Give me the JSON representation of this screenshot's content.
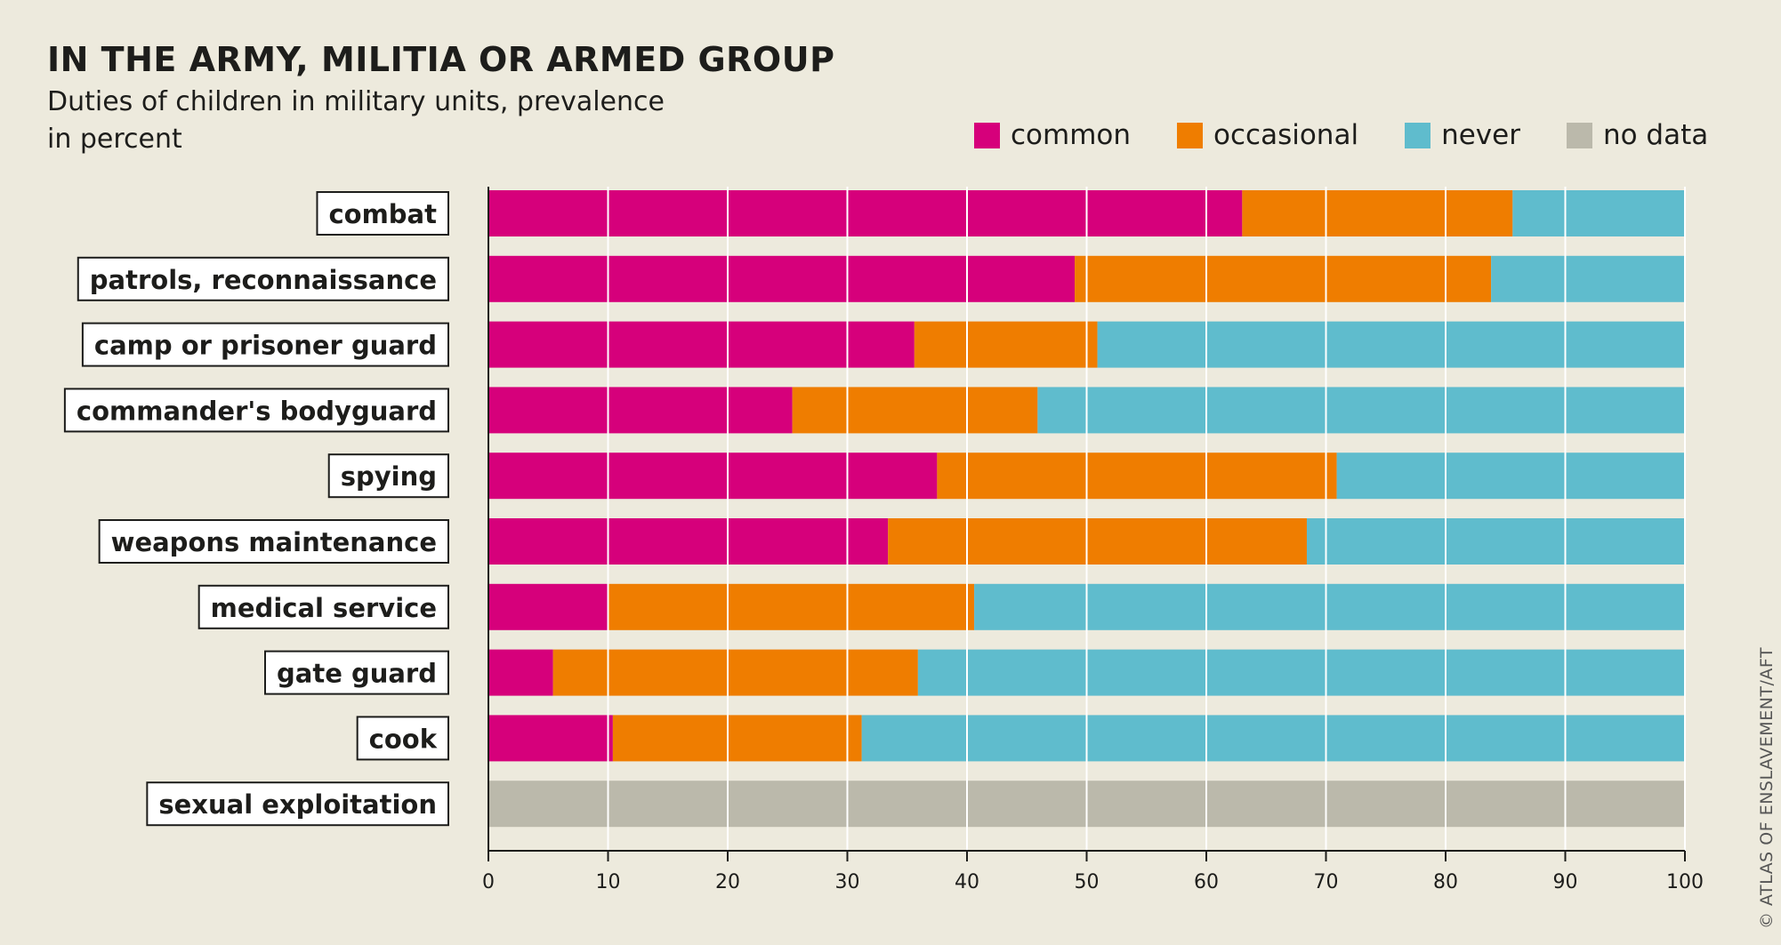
{
  "title": "IN THE ARMY, MILITIA OR ARMED GROUP",
  "subtitle": "Duties of children in military units, prevalence in percent",
  "credit": "© ATLAS OF ENSLAVEMENT/AFT",
  "colors": {
    "background": "#edeadd",
    "common": "#d6007b",
    "occasional": "#ef7d00",
    "never": "#5fbccd",
    "no_data": "#bbb9ab",
    "grid": "#ffffff",
    "axis": "#1d1d1b"
  },
  "legend": [
    {
      "key": "common",
      "label": "common",
      "color": "#d6007b"
    },
    {
      "key": "occasional",
      "label": "occasional",
      "color": "#ef7d00"
    },
    {
      "key": "never",
      "label": "never",
      "color": "#5fbccd"
    },
    {
      "key": "no_data",
      "label": "no data",
      "color": "#bbb9ab"
    }
  ],
  "chart_data": {
    "type": "bar",
    "orientation": "horizontal",
    "stacked": true,
    "title": "IN THE ARMY, MILITIA OR ARMED GROUP",
    "subtitle": "Duties of children in military units, prevalence in percent",
    "xlim": [
      0,
      100
    ],
    "xticks": [
      0,
      10,
      20,
      30,
      40,
      50,
      60,
      70,
      80,
      90,
      100
    ],
    "grid": true,
    "legend_position": "top-right",
    "categories": [
      "combat",
      "patrols, reconnaissance",
      "camp or prisoner guard",
      "commander's bodyguard",
      "spying",
      "weapons maintenance",
      "medical service",
      "gate guard",
      "cook",
      "sexual exploitation"
    ],
    "series": [
      {
        "name": "common",
        "color": "#d6007b",
        "values": [
          63,
          49,
          35.6,
          25.4,
          37.5,
          33.4,
          10,
          5.4,
          10.4,
          0
        ]
      },
      {
        "name": "occasional",
        "color": "#ef7d00",
        "values": [
          22.6,
          34.8,
          15.3,
          20.5,
          33.4,
          35,
          30.6,
          30.5,
          20.8,
          0
        ]
      },
      {
        "name": "never",
        "color": "#5fbccd",
        "values": [
          14.4,
          16.2,
          49.1,
          54.1,
          29.1,
          31.6,
          59.4,
          64.1,
          68.8,
          0
        ]
      },
      {
        "name": "no data",
        "color": "#bbb9ab",
        "values": [
          0,
          0,
          0,
          0,
          0,
          0,
          0,
          0,
          0,
          100
        ]
      }
    ]
  }
}
